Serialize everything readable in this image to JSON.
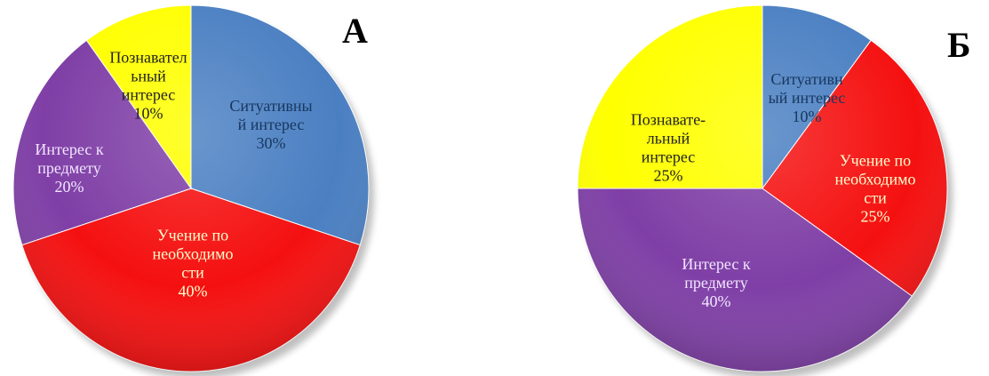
{
  "chart_data": [
    {
      "type": "pie",
      "title": "А",
      "slices": [
        {
          "label_lines": [
            "Ситуативны",
            "й интерес"
          ],
          "value": 30,
          "value_label": "30%",
          "color": "#4a7fc2",
          "text_color": "#17375e"
        },
        {
          "label_lines": [
            "Учение по",
            "необходимо",
            "сти"
          ],
          "value": 40,
          "value_label": "40%",
          "color": "#f51010",
          "text_color": "#ffffcc"
        },
        {
          "label_lines": [
            "Интерес к",
            "предмету"
          ],
          "value": 20,
          "value_label": "20%",
          "color": "#7f3fa6",
          "text_color": "#f2e6ff"
        },
        {
          "label_lines": [
            "Познавател",
            "ьный",
            "интерес"
          ],
          "value": 10,
          "value_label": "10%",
          "color": "#ffff00",
          "text_color": "#222222"
        }
      ]
    },
    {
      "type": "pie",
      "title": "Б",
      "slices": [
        {
          "label_lines": [
            "Ситуативн",
            "ый интерес"
          ],
          "value": 10,
          "value_label": "10%",
          "color": "#4a7fc2",
          "text_color": "#17375e"
        },
        {
          "label_lines": [
            "Учение по",
            "необходимо",
            "сти"
          ],
          "value": 25,
          "value_label": "25%",
          "color": "#f51010",
          "text_color": "#ffffcc"
        },
        {
          "label_lines": [
            "Интерес к",
            "предмету"
          ],
          "value": 40,
          "value_label": "40%",
          "color": "#7f3fa6",
          "text_color": "#f2e6ff"
        },
        {
          "label_lines": [
            "Познавате-",
            "льный",
            "интерес"
          ],
          "value": 25,
          "value_label": "25%",
          "color": "#ffff00",
          "text_color": "#222222"
        }
      ]
    }
  ]
}
